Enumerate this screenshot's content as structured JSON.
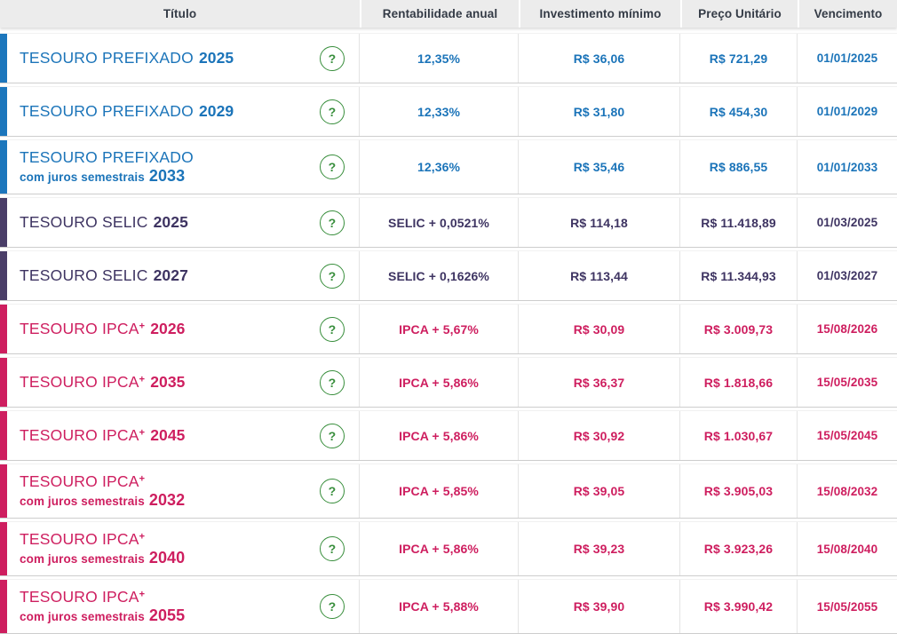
{
  "table": {
    "columns": [
      {
        "label": "Título"
      },
      {
        "label": "Rentabilidade anual"
      },
      {
        "label": "Investimento mínimo"
      },
      {
        "label": "Preço Unitário"
      },
      {
        "label": "Vencimento"
      }
    ],
    "rows": [
      {
        "group": "prefixado",
        "name": "TESOURO PREFIXADO",
        "sup": "",
        "line2": "",
        "year": "2025",
        "rate": "12,35%",
        "min_investment": "R$ 36,06",
        "unit_price": "R$ 721,29",
        "maturity": "01/01/2025"
      },
      {
        "group": "prefixado",
        "name": "TESOURO PREFIXADO",
        "sup": "",
        "line2": "",
        "year": "2029",
        "rate": "12,33%",
        "min_investment": "R$ 31,80",
        "unit_price": "R$ 454,30",
        "maturity": "01/01/2029"
      },
      {
        "group": "prefixado",
        "name": "TESOURO PREFIXADO",
        "sup": "",
        "line2": "com juros semestrais",
        "year": "2033",
        "rate": "12,36%",
        "min_investment": "R$ 35,46",
        "unit_price": "R$ 886,55",
        "maturity": "01/01/2033"
      },
      {
        "group": "selic",
        "name": "TESOURO SELIC",
        "sup": "",
        "line2": "",
        "year": "2025",
        "rate": "SELIC + 0,0521%",
        "min_investment": "R$ 114,18",
        "unit_price": "R$ 11.418,89",
        "maturity": "01/03/2025"
      },
      {
        "group": "selic",
        "name": "TESOURO SELIC",
        "sup": "",
        "line2": "",
        "year": "2027",
        "rate": "SELIC + 0,1626%",
        "min_investment": "R$ 113,44",
        "unit_price": "R$ 11.344,93",
        "maturity": "01/03/2027"
      },
      {
        "group": "ipca",
        "name": "TESOURO IPCA",
        "sup": "+",
        "line2": "",
        "year": "2026",
        "rate": "IPCA + 5,67%",
        "min_investment": "R$ 30,09",
        "unit_price": "R$ 3.009,73",
        "maturity": "15/08/2026"
      },
      {
        "group": "ipca",
        "name": "TESOURO IPCA",
        "sup": "+",
        "line2": "",
        "year": "2035",
        "rate": "IPCA + 5,86%",
        "min_investment": "R$ 36,37",
        "unit_price": "R$ 1.818,66",
        "maturity": "15/05/2035"
      },
      {
        "group": "ipca",
        "name": "TESOURO IPCA",
        "sup": "+",
        "line2": "",
        "year": "2045",
        "rate": "IPCA + 5,86%",
        "min_investment": "R$ 30,92",
        "unit_price": "R$ 1.030,67",
        "maturity": "15/05/2045"
      },
      {
        "group": "ipca",
        "name": "TESOURO IPCA",
        "sup": "+",
        "line2": "com juros semestrais",
        "year": "2032",
        "rate": "IPCA + 5,85%",
        "min_investment": "R$ 39,05",
        "unit_price": "R$ 3.905,03",
        "maturity": "15/08/2032"
      },
      {
        "group": "ipca",
        "name": "TESOURO IPCA",
        "sup": "+",
        "line2": "com juros semestrais",
        "year": "2040",
        "rate": "IPCA + 5,86%",
        "min_investment": "R$ 39,23",
        "unit_price": "R$ 3.923,26",
        "maturity": "15/08/2040"
      },
      {
        "group": "ipca",
        "name": "TESOURO IPCA",
        "sup": "+",
        "line2": "com juros semestrais",
        "year": "2055",
        "rate": "IPCA + 5,88%",
        "min_investment": "R$ 39,90",
        "unit_price": "R$ 3.990,42",
        "maturity": "15/05/2055"
      }
    ]
  },
  "colors": {
    "prefixado": {
      "bar": "#1c76bc",
      "text": "#1b74b9"
    },
    "selic": {
      "bar": "#4a3e68",
      "text": "#3e3462"
    },
    "ipca": {
      "bar": "#ce1e5f",
      "text": "#ce1e5f"
    },
    "help_green": "#388e3c",
    "header_bg": "#ececec",
    "header_text": "#343b46"
  },
  "icons": {
    "help_glyph": "?"
  }
}
